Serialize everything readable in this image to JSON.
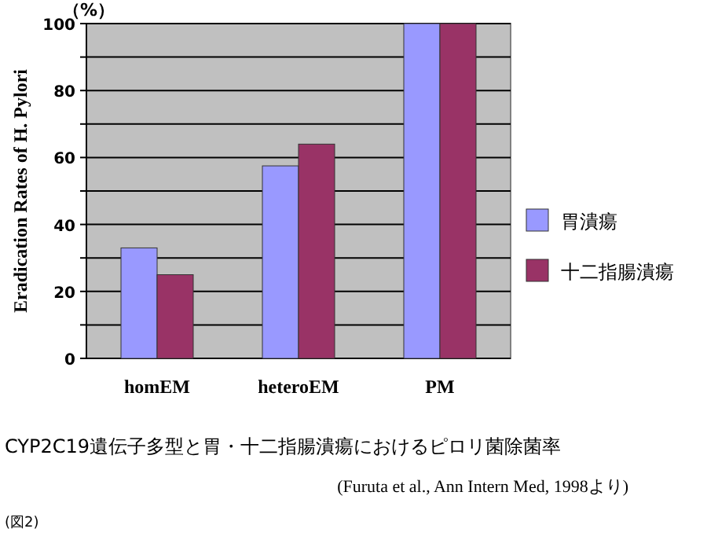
{
  "chart_data": {
    "type": "bar",
    "categories": [
      "homEM",
      "heteroEM",
      "PM"
    ],
    "series": [
      {
        "name": "胃潰瘍",
        "color": "#9999ff",
        "values": [
          33,
          57.5,
          100
        ]
      },
      {
        "name": "十二指腸潰瘍",
        "color": "#993366",
        "values": [
          25,
          64,
          100
        ]
      }
    ],
    "ylim": [
      0,
      100
    ],
    "yticks": [
      0,
      {
        "value": 10,
        "label": null
      },
      20,
      {
        "value": 30,
        "label": null
      },
      40,
      {
        "value": 50,
        "label": null
      },
      60,
      {
        "value": 70,
        "label": null
      },
      80,
      {
        "value": 90,
        "label": null
      },
      100
    ],
    "ylabel": "Eradication Rates of H. Pylori",
    "grid": "y",
    "legend": "right",
    "annotations": [
      "（%）",
      "CYP2C19遺伝子多型と胃・十二指腸潰瘍におけるピロリ菌除菌率",
      "(Furuta et al., Ann Intern Med, 1998より)",
      "(図2)"
    ]
  }
}
